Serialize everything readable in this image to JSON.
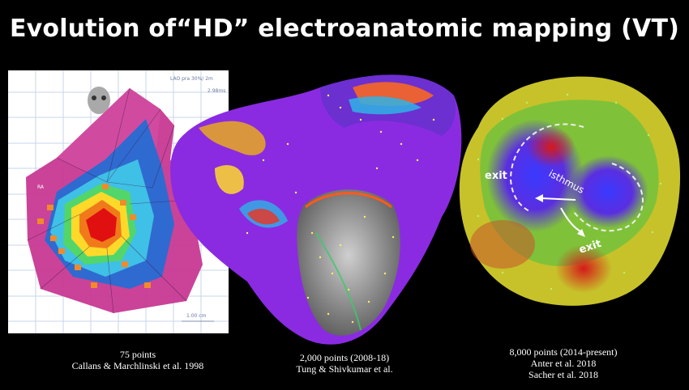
{
  "slide": {
    "title": "Evolution of“HD” electroanatomic mapping (VT)"
  },
  "panels": [
    {
      "caption_lines": [
        "75 points",
        "Callans & Marchlinski et al. 1998"
      ],
      "inner_labels": {
        "top_right": "LAO pra 30%/ 2m",
        "scale_top": "2.98ms",
        "chamber": "RA",
        "scale_bottom": "1.00 cm"
      }
    },
    {
      "caption_lines": [
        "2,000 points (2008-18)",
        "Tung & Shivkumar et al."
      ]
    },
    {
      "caption_lines": [
        "8,000 points (2014-present)",
        "Anter et al. 2018",
        "Sacher et al. 2018"
      ],
      "annotations": {
        "exit_left": "exit",
        "isthmus": "isthmus",
        "exit_right": "exit"
      }
    }
  ],
  "colors": {
    "background": "#000000",
    "text": "#ffffff",
    "activation_purple": "#8a2be2",
    "activation_red": "#e01010"
  }
}
